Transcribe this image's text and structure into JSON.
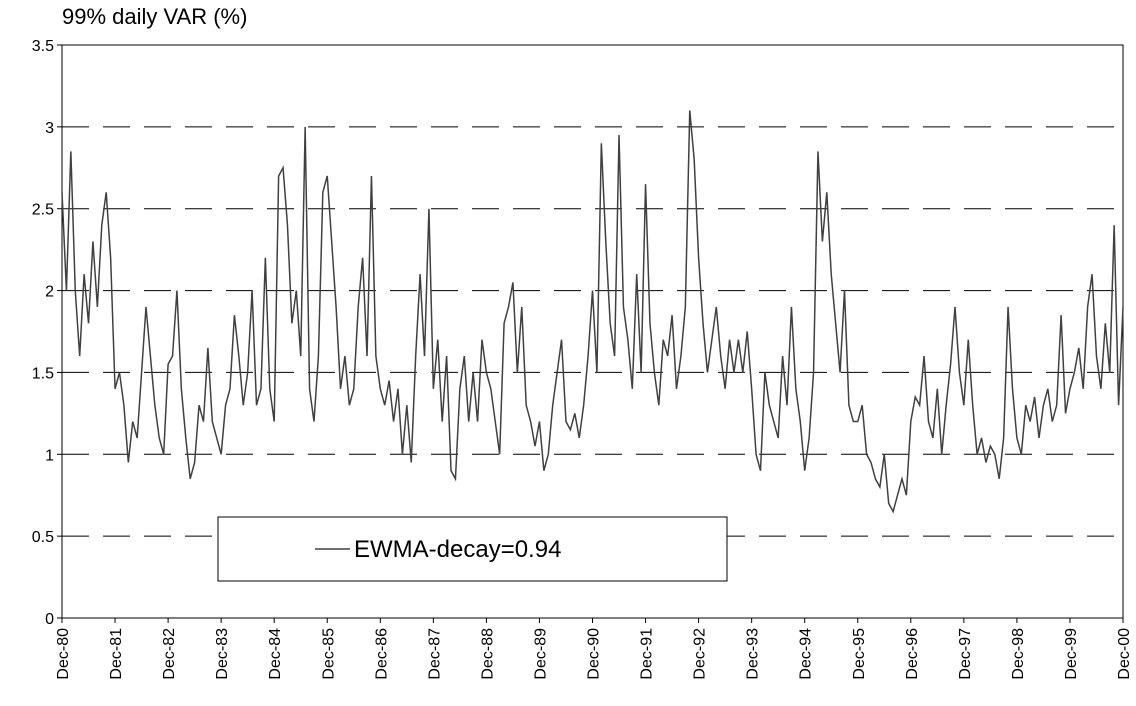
{
  "chart_data": {
    "type": "line",
    "title": "99% daily VAR (%)",
    "categories": [
      "Dec-80",
      null,
      null,
      null,
      null,
      null,
      null,
      null,
      null,
      null,
      null,
      null,
      "Dec-81",
      null,
      null,
      null,
      null,
      null,
      null,
      null,
      null,
      null,
      null,
      null,
      "Dec-82",
      null,
      null,
      null,
      null,
      null,
      null,
      null,
      null,
      null,
      null,
      null,
      "Dec-83",
      null,
      null,
      null,
      null,
      null,
      null,
      null,
      null,
      null,
      null,
      null,
      "Dec-84",
      null,
      null,
      null,
      null,
      null,
      null,
      null,
      null,
      null,
      null,
      null,
      "Dec-85",
      null,
      null,
      null,
      null,
      null,
      null,
      null,
      null,
      null,
      null,
      null,
      "Dec-86",
      null,
      null,
      null,
      null,
      null,
      null,
      null,
      null,
      null,
      null,
      null,
      "Dec-87",
      null,
      null,
      null,
      null,
      null,
      null,
      null,
      null,
      null,
      null,
      null,
      "Dec-88",
      null,
      null,
      null,
      null,
      null,
      null,
      null,
      null,
      null,
      null,
      null,
      "Dec-89",
      null,
      null,
      null,
      null,
      null,
      null,
      null,
      null,
      null,
      null,
      null,
      "Dec-90",
      null,
      null,
      null,
      null,
      null,
      null,
      null,
      null,
      null,
      null,
      null,
      "Dec-91",
      null,
      null,
      null,
      null,
      null,
      null,
      null,
      null,
      null,
      null,
      null,
      "Dec-92",
      null,
      null,
      null,
      null,
      null,
      null,
      null,
      null,
      null,
      null,
      null,
      "Dec-93",
      null,
      null,
      null,
      null,
      null,
      null,
      null,
      null,
      null,
      null,
      null,
      "Dec-94",
      null,
      null,
      null,
      null,
      null,
      null,
      null,
      null,
      null,
      null,
      null,
      "Dec-95",
      null,
      null,
      null,
      null,
      null,
      null,
      null,
      null,
      null,
      null,
      null,
      "Dec-96",
      null,
      null,
      null,
      null,
      null,
      null,
      null,
      null,
      null,
      null,
      null,
      "Dec-97",
      null,
      null,
      null,
      null,
      null,
      null,
      null,
      null,
      null,
      null,
      null,
      "Dec-98",
      null,
      null,
      null,
      null,
      null,
      null,
      null,
      null,
      null,
      null,
      null,
      "Dec-99",
      null,
      null,
      null,
      null,
      null,
      null,
      null,
      null,
      null,
      null,
      null,
      "Dec-00"
    ],
    "series": [
      {
        "name": "EWMA-decay=0.94",
        "color": "#404040",
        "values": [
          2.6,
          2.0,
          2.85,
          2.0,
          1.6,
          2.1,
          1.8,
          2.3,
          1.9,
          2.4,
          2.6,
          2.2,
          1.4,
          1.5,
          1.3,
          0.95,
          1.2,
          1.1,
          1.5,
          1.9,
          1.6,
          1.3,
          1.1,
          1.0,
          1.55,
          1.6,
          2.0,
          1.4,
          1.1,
          0.85,
          0.95,
          1.3,
          1.2,
          1.65,
          1.2,
          1.1,
          1.0,
          1.3,
          1.4,
          1.85,
          1.6,
          1.3,
          1.5,
          2.0,
          1.3,
          1.4,
          2.2,
          1.4,
          1.2,
          2.7,
          2.75,
          2.4,
          1.8,
          2.0,
          1.6,
          3.0,
          1.4,
          1.2,
          1.6,
          2.6,
          2.7,
          2.3,
          1.9,
          1.4,
          1.6,
          1.3,
          1.4,
          1.9,
          2.2,
          1.6,
          2.7,
          1.6,
          1.4,
          1.3,
          1.45,
          1.2,
          1.4,
          1.0,
          1.3,
          0.95,
          1.6,
          2.1,
          1.6,
          2.5,
          1.4,
          1.7,
          1.2,
          1.6,
          0.9,
          0.85,
          1.4,
          1.6,
          1.2,
          1.5,
          1.2,
          1.7,
          1.5,
          1.4,
          1.2,
          1.0,
          1.8,
          1.9,
          2.05,
          1.5,
          1.9,
          1.3,
          1.2,
          1.05,
          1.2,
          0.9,
          1.0,
          1.3,
          1.5,
          1.7,
          1.2,
          1.15,
          1.25,
          1.1,
          1.3,
          1.6,
          2.0,
          1.5,
          2.9,
          2.3,
          1.8,
          1.6,
          2.95,
          1.9,
          1.7,
          1.4,
          2.1,
          1.5,
          2.65,
          1.8,
          1.5,
          1.3,
          1.7,
          1.6,
          1.85,
          1.4,
          1.6,
          1.9,
          3.1,
          2.8,
          2.2,
          1.8,
          1.5,
          1.7,
          1.9,
          1.6,
          1.4,
          1.7,
          1.5,
          1.7,
          1.5,
          1.75,
          1.4,
          1.0,
          0.9,
          1.5,
          1.3,
          1.2,
          1.1,
          1.6,
          1.3,
          1.9,
          1.4,
          1.2,
          0.9,
          1.1,
          1.5,
          2.85,
          2.3,
          2.6,
          2.1,
          1.8,
          1.5,
          2.0,
          1.3,
          1.2,
          1.2,
          1.3,
          1.0,
          0.95,
          0.85,
          0.8,
          1.0,
          0.7,
          0.65,
          0.75,
          0.85,
          0.75,
          1.2,
          1.35,
          1.3,
          1.6,
          1.2,
          1.1,
          1.4,
          1.0,
          1.3,
          1.55,
          1.9,
          1.5,
          1.3,
          1.7,
          1.3,
          1.0,
          1.1,
          0.95,
          1.05,
          1.0,
          0.85,
          1.1,
          1.9,
          1.4,
          1.1,
          1.0,
          1.3,
          1.2,
          1.35,
          1.1,
          1.3,
          1.4,
          1.2,
          1.3,
          1.85,
          1.25,
          1.4,
          1.5,
          1.65,
          1.4,
          1.9,
          2.1,
          1.6,
          1.4,
          1.8,
          1.5,
          2.4,
          1.3,
          1.9
        ]
      }
    ],
    "ylim": [
      0,
      3.5
    ],
    "yticks": [
      0,
      0.5,
      1,
      1.5,
      2,
      2.5,
      3,
      3.5
    ],
    "grid": true,
    "legend": "lower-left"
  }
}
